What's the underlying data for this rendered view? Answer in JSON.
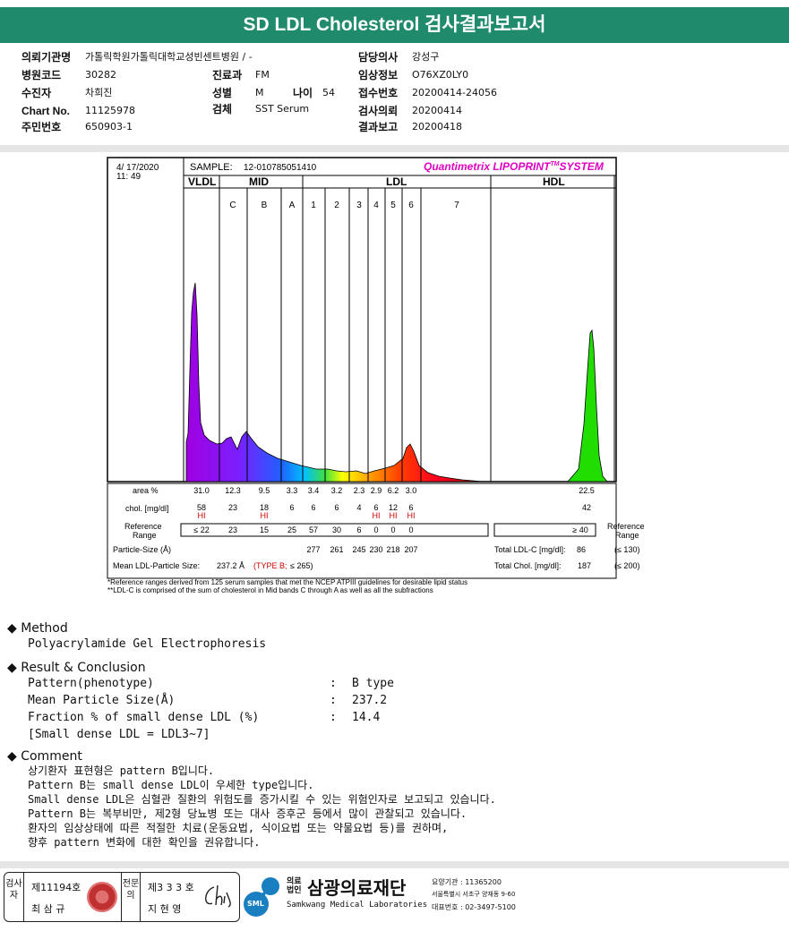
{
  "title": "SD LDL Cholesterol 검사결과보고서",
  "info": {
    "institution": {
      "label": "의뢰기관명",
      "value": "가톨릭학원가톨릭대학교성빈센트병원 / -"
    },
    "hospital_code": {
      "label": "병원코드",
      "value": "30282"
    },
    "patient": {
      "label": "수진자",
      "value": "차희진"
    },
    "chart_no": {
      "label": "Chart No.",
      "value": "11125978"
    },
    "resident_no": {
      "label": "주민번호",
      "value": "650903-1"
    },
    "department": {
      "label": "진료과",
      "value": "FM"
    },
    "sex": {
      "label": "성별",
      "value": "M"
    },
    "age": {
      "label": "나이",
      "value": "54"
    },
    "specimen": {
      "label": "검체",
      "value": "SST Serum"
    },
    "doctor": {
      "label": "담당의사",
      "value": "강성구"
    },
    "clinical_info": {
      "label": "임상정보",
      "value": "O76XZ0LY0"
    },
    "receipt_no": {
      "label": "접수번호",
      "value": "20200414-24056"
    },
    "request_date": {
      "label": "검사의뢰",
      "value": "20200414"
    },
    "report_date": {
      "label": "결과보고",
      "value": "20200418"
    }
  },
  "lipoprint": {
    "date": "4/ 17/2020",
    "time": "11: 49",
    "sample_label": "SAMPLE:",
    "sample_id": "12-010785051410",
    "system": "Quantimetrix LIPOPRINT",
    "system_tm": "TM",
    "system_suffix": "SYSTEM",
    "groups": [
      "VLDL",
      "MID",
      "LDL",
      "HDL"
    ],
    "bands": [
      "C",
      "B",
      "A",
      "1",
      "2",
      "3",
      "4",
      "5",
      "6",
      "7"
    ],
    "area_label": "area %",
    "chol_label": "chol. [mg/dl]",
    "ref_label": [
      "Reference",
      "Range"
    ],
    "particle_label": "Particle-Size (Å)",
    "mean_label": "Mean LDL-Particle Size:",
    "mean_value": "237.2 Å",
    "mean_type": "(TYPE B;",
    "mean_ref": "≤ 265)",
    "total_ldl_label": "Total LDL-C [mg/dl]:",
    "total_ldl_value": "86",
    "total_ldl_ref": "(≤ 130)",
    "total_chol_label": "Total Chol. [mg/dl]:",
    "total_chol_value": "187",
    "total_chol_ref": "(≤ 200)",
    "hi": "HI",
    "footnote1": "*Reference ranges derived from 125 serum samples that met the NCEP ATPIII guidelines for desirable lipid status",
    "footnote2": "**LDL-C is comprised of the sum of cholesterol in Mid bands C through A as well as all the subfractions"
  },
  "chart_data": {
    "type": "table",
    "columns": [
      "VLDL",
      "C",
      "B",
      "A",
      "1",
      "2",
      "3",
      "4",
      "5",
      "6",
      "HDL"
    ],
    "area_percent": [
      "31.0",
      "12.3",
      "9.5",
      "3.3",
      "3.4",
      "3.2",
      "2.3",
      "2.9",
      "6.2",
      "3.0",
      "22.5"
    ],
    "cholesterol_mg_dl": [
      "58",
      "23",
      "18",
      "6",
      "6",
      "6",
      "4",
      "6",
      "12",
      "6",
      "42"
    ],
    "flags": [
      "HI",
      "",
      "HI",
      "",
      "",
      "",
      "",
      "HI",
      "HI",
      "HI",
      ""
    ],
    "reference_range": [
      "≤ 22",
      "23",
      "15",
      "25",
      "57",
      "30",
      "6",
      "0",
      "0",
      "0",
      "≥ 40"
    ],
    "particle_size_angstrom": [
      "",
      "",
      "",
      "",
      "277",
      "261",
      "245",
      "230",
      "218",
      "207",
      ""
    ]
  },
  "method": {
    "heading": "Method",
    "text": "Polyacrylamide Gel Electrophoresis"
  },
  "result": {
    "heading": "Result & Conclusion",
    "rows": [
      {
        "label": "Pattern(phenotype)",
        "colon": ":",
        "value": "B type"
      },
      {
        "label": "Mean Particle Size(Å)",
        "colon": ":",
        "value": "237.2"
      },
      {
        "label": "Fraction % of small dense LDL (%)",
        "colon": ":",
        "value": "14.4"
      }
    ],
    "note": "[Small dense LDL = LDL3~7]"
  },
  "comment": {
    "heading": "Comment",
    "lines": [
      "상기환자 표현형은 pattern B입니다.",
      "Pattern B는 small dense LDL이 우세한 type입니다.",
      "Small dense LDL은 심혈관 질환의 위험도를 증가시킬 수 있는 위험인자로 보고되고 있습니다.",
      "Pattern B는 복부비만, 제2형 당뇨병 또는 대사 증후군 등에서 많이 관찰되고 있습니다.",
      "환자의 임상상태에 따른 적절한 치료(운동요법, 식이요법 또는 약물요법 등)를 권하며,",
      "향후 pattern 변화에 대한 확인을 권유합니다."
    ]
  },
  "signatures": {
    "examiner_label": "검사자",
    "examiner_no": "제11194호",
    "examiner_name": "최 삼 규",
    "specialist_label": "전문의",
    "specialist_no": "제3 3 3 호",
    "specialist_name": "지 현 영"
  },
  "org": {
    "prefix1": "의료",
    "prefix2": "법인",
    "name": "삼광의료재단",
    "english": "Samkwang Medical Laboratories",
    "logo": "SML",
    "code": "요양기관 : 11365200",
    "address": "서울특별시 서초구 양재동 9-60",
    "phone": "대표번호 : 02-3497-5100"
  }
}
